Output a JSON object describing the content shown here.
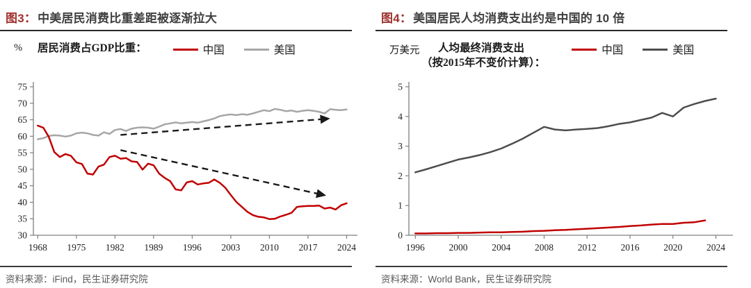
{
  "figures": [
    {
      "title_prefix": "图3：",
      "title_text": "中美居民消费比重差距被逐渐拉大",
      "unit": "%",
      "legend_title_line1": "居民消费占GDP比重：",
      "legend_title_line2": "",
      "source": "资料来源：iFind，民生证券研究院"
    },
    {
      "title_prefix": "图4：",
      "title_text": "美国居民人均消费支出约是中国的 10 倍",
      "unit": "万美元",
      "legend_title_line1": "人均最终消费支出",
      "legend_title_line2": "（按2015年不变价计算）：",
      "source": "资料来源：World Bank，民生证券研究院"
    }
  ],
  "colors": {
    "title_number_red": "#A03330",
    "title_text_gray": "#3F3F3F",
    "china_red": "#C00000",
    "us_light_gray": "#A6A6A6",
    "us_dark_gray": "#4D4D4D",
    "axis_gray": "#7F7F7F",
    "arrow_black": "#1A1A1A"
  },
  "chart_data": [
    {
      "type": "line",
      "title": "居民消费占GDP比重：",
      "ylabel": "%",
      "xlim": [
        1967.2,
        2025.2
      ],
      "ylim": [
        30,
        75
      ],
      "yticks": [
        30,
        35,
        40,
        45,
        50,
        55,
        60,
        65,
        70,
        75
      ],
      "xticks": [
        1968,
        1975,
        1982,
        1989,
        1996,
        2003,
        2010,
        2017,
        2024
      ],
      "grid": false,
      "legend_position": "top",
      "series": [
        {
          "name": "中国",
          "color": "#C00000",
          "x_start": 1968,
          "values": [
            63.2,
            62.6,
            59.8,
            55.2,
            53.7,
            54.6,
            54.1,
            52.1,
            51.6,
            48.7,
            48.4,
            50.8,
            51.4,
            53.7,
            54.1,
            53.2,
            53.4,
            52.4,
            52.2,
            49.9,
            51.7,
            51.2,
            48.7,
            47.4,
            46.4,
            43.9,
            43.6,
            46.0,
            46.4,
            45.4,
            45.7,
            45.9,
            46.9,
            45.9,
            44.4,
            42.2,
            40.1,
            38.6,
            37.1,
            36.1,
            35.6,
            35.4,
            34.9,
            35.0,
            35.7,
            36.2,
            36.8,
            38.6,
            38.8,
            38.9,
            38.9,
            39.0,
            38.1,
            38.4,
            37.8,
            39.1,
            39.7
          ]
        },
        {
          "name": "美国",
          "color": "#A6A6A6",
          "x_start": 1968,
          "values": [
            59.1,
            59.4,
            60.1,
            60.3,
            60.2,
            59.9,
            60.2,
            60.9,
            61.1,
            60.9,
            60.4,
            60.2,
            61.2,
            60.7,
            61.9,
            62.2,
            61.6,
            62.3,
            62.6,
            62.7,
            62.6,
            62.3,
            62.9,
            63.6,
            63.9,
            64.2,
            63.9,
            64.1,
            64.3,
            64.1,
            64.5,
            64.9,
            65.4,
            66.1,
            66.4,
            66.6,
            66.4,
            66.7,
            66.5,
            66.9,
            67.4,
            67.9,
            67.6,
            68.3,
            68.0,
            67.6,
            67.8,
            67.4,
            67.7,
            67.9,
            67.7,
            67.4,
            66.9,
            68.2,
            68.0,
            67.9,
            68.1
          ]
        }
      ],
      "annotations": [
        {
          "type": "dashed-arrow",
          "from": [
            1983,
            60.4
          ],
          "to": [
            2020.5,
            65.3
          ]
        },
        {
          "type": "dashed-arrow",
          "from": [
            1983,
            55.8
          ],
          "to": [
            2019.8,
            42.2
          ]
        }
      ]
    },
    {
      "type": "line",
      "title": "人均最终消费支出（按2015年不变价计算）：",
      "ylabel": "万美元",
      "xlim": [
        1995.4,
        2025.2
      ],
      "ylim": [
        0,
        5
      ],
      "yticks": [
        0,
        1,
        2,
        3,
        4,
        5
      ],
      "xticks": [
        1996,
        2000,
        2004,
        2008,
        2012,
        2016,
        2020,
        2024
      ],
      "grid": false,
      "legend_position": "top",
      "series": [
        {
          "name": "中国",
          "color": "#C00000",
          "x_start": 1996,
          "values": [
            0.06,
            0.06,
            0.07,
            0.07,
            0.08,
            0.08,
            0.09,
            0.1,
            0.1,
            0.11,
            0.12,
            0.14,
            0.15,
            0.17,
            0.18,
            0.2,
            0.22,
            0.24,
            0.26,
            0.28,
            0.31,
            0.33,
            0.36,
            0.38,
            0.38,
            0.42,
            0.44,
            0.5
          ]
        },
        {
          "name": "美国",
          "color": "#4D4D4D",
          "x_start": 1996,
          "values": [
            2.12,
            2.22,
            2.33,
            2.44,
            2.55,
            2.62,
            2.7,
            2.8,
            2.92,
            3.08,
            3.25,
            3.45,
            3.65,
            3.56,
            3.53,
            3.56,
            3.58,
            3.61,
            3.67,
            3.75,
            3.8,
            3.88,
            3.96,
            4.12,
            4.0,
            4.3,
            4.42,
            4.52,
            4.6
          ]
        }
      ],
      "annotations": []
    }
  ]
}
